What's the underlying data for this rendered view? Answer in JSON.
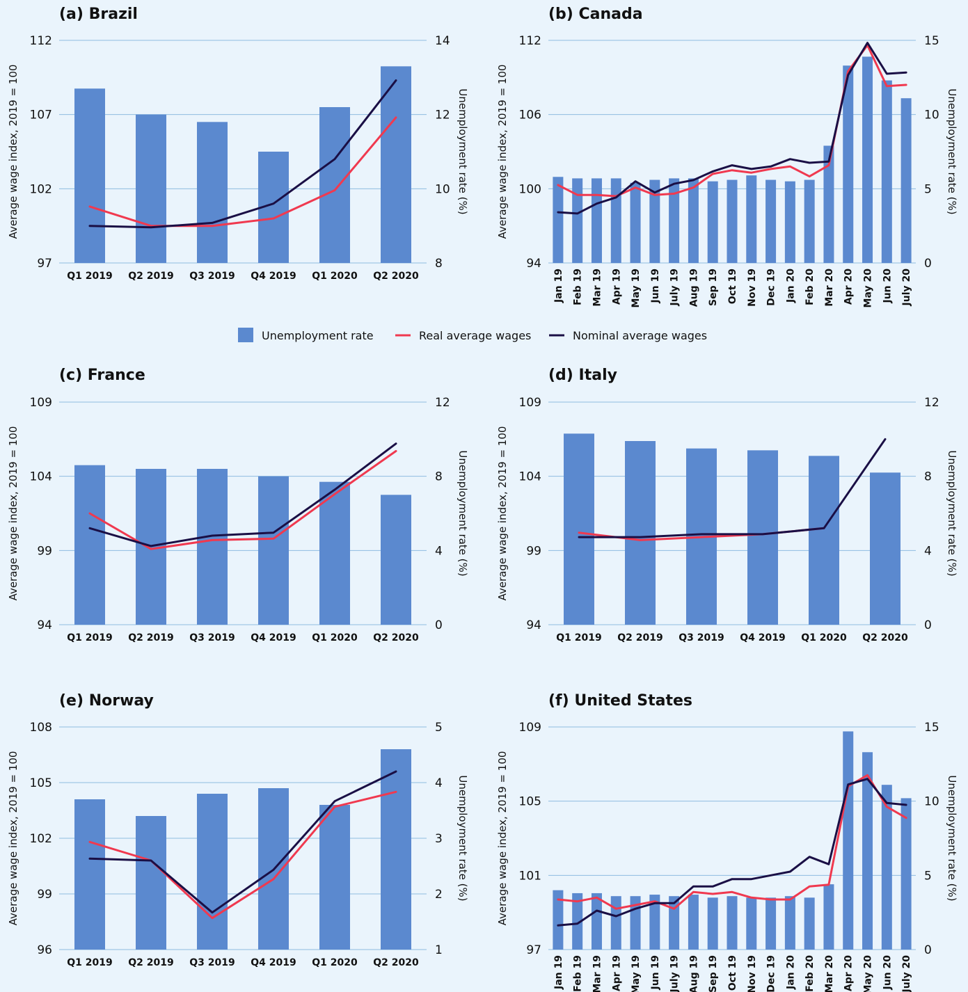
{
  "legend": {
    "unemployment": "Unemployment rate",
    "real": "Real average wages",
    "nominal": "Nominal average wages"
  },
  "colors": {
    "background": "#eaf4fc",
    "bar": "#5b89cf",
    "real": "#f0394f",
    "nominal": "#1a0f45",
    "grid": "#8fbbe0",
    "text": "#111111"
  },
  "chart_data": [
    {
      "type": "bar+line",
      "title": "(a) Brazil",
      "ylabel_left": "Average wage index, 2019 = 100",
      "ylabel_right": "Unemployment rate (%)",
      "categories": [
        "Q1 2019",
        "Q2 2019",
        "Q3 2019",
        "Q4 2019",
        "Q1 2020",
        "Q2 2020"
      ],
      "left_axis": {
        "min": 97,
        "max": 112,
        "ticks": [
          97,
          102,
          107,
          112
        ]
      },
      "right_axis": {
        "min": 8,
        "max": 14,
        "ticks": [
          8,
          10,
          12,
          14
        ]
      },
      "unemployment": [
        12.7,
        12.0,
        11.8,
        11.0,
        12.2,
        13.3
      ],
      "real": [
        100.8,
        99.5,
        99.5,
        100.0,
        101.9,
        106.8
      ],
      "nominal": [
        99.5,
        99.4,
        99.7,
        101.0,
        104.0,
        109.3
      ]
    },
    {
      "type": "bar+line",
      "title": "(b) Canada",
      "ylabel_left": "Average wage index, 2019 = 100",
      "ylabel_right": "Unemployment rate (%)",
      "categories": [
        "Jan 19",
        "Feb 19",
        "Mar 19",
        "Apr 19",
        "May 19",
        "Jun 19",
        "July 19",
        "Aug 19",
        "Sep 19",
        "Oct 19",
        "Nov 19",
        "Dec 19",
        "Jan 20",
        "Feb 20",
        "Mar 20",
        "Apr 20",
        "May 20",
        "Jun 20",
        "July 20"
      ],
      "left_axis": {
        "min": 94,
        "max": 112,
        "ticks": [
          94,
          100,
          106,
          112
        ]
      },
      "right_axis": {
        "min": 0,
        "max": 15,
        "ticks": [
          0,
          5,
          10,
          15
        ]
      },
      "unemployment": [
        5.8,
        5.7,
        5.7,
        5.7,
        5.4,
        5.6,
        5.7,
        5.7,
        5.5,
        5.6,
        5.9,
        5.6,
        5.5,
        5.6,
        7.9,
        13.3,
        13.9,
        12.3,
        11.1
      ],
      "real": [
        100.3,
        99.5,
        99.5,
        99.4,
        100.1,
        99.5,
        99.6,
        100.1,
        101.2,
        101.5,
        101.3,
        101.6,
        101.8,
        101.0,
        101.9,
        109.5,
        111.6,
        108.3,
        108.4
      ],
      "nominal": [
        98.1,
        98.0,
        98.8,
        99.3,
        100.6,
        99.7,
        100.4,
        100.7,
        101.4,
        101.9,
        101.6,
        101.8,
        102.4,
        102.1,
        102.2,
        109.2,
        111.8,
        109.3,
        109.4
      ]
    },
    {
      "type": "bar+line",
      "title": "(c) France",
      "ylabel_left": "Average wage index, 2019 = 100",
      "ylabel_right": "Unemployment rate (%)",
      "categories": [
        "Q1 2019",
        "Q2 2019",
        "Q3 2019",
        "Q4 2019",
        "Q1 2020",
        "Q2 2020"
      ],
      "left_axis": {
        "min": 94,
        "max": 109,
        "ticks": [
          94,
          99,
          104,
          109
        ]
      },
      "right_axis": {
        "min": 0,
        "max": 12,
        "ticks": [
          0,
          4,
          8,
          12
        ]
      },
      "unemployment": [
        8.6,
        8.4,
        8.4,
        8.0,
        7.7,
        7.0
      ],
      "real": [
        101.5,
        99.1,
        99.7,
        99.8,
        102.8,
        105.7
      ],
      "nominal": [
        100.5,
        99.3,
        100.0,
        100.2,
        103.1,
        106.2
      ]
    },
    {
      "type": "bar+line",
      "title": "(d) Italy",
      "ylabel_left": "Average wage index, 2019 = 100",
      "ylabel_right": "Unemployment rate (%)",
      "categories": [
        "Q1 2019",
        "Q2 2019",
        "Q3 2019",
        "Q4 2019",
        "Q1 2020",
        "Q2 2020"
      ],
      "left_axis": {
        "min": 94,
        "max": 109,
        "ticks": [
          94,
          99,
          104,
          109
        ]
      },
      "right_axis": {
        "min": 0,
        "max": 12,
        "ticks": [
          0,
          4,
          8,
          12
        ]
      },
      "unemployment": [
        10.3,
        9.9,
        9.5,
        9.4,
        9.1,
        8.2
      ],
      "real": [
        100.2,
        99.7,
        99.9,
        100.1,
        100.5,
        null
      ],
      "nominal": [
        99.9,
        99.9,
        100.1,
        100.1,
        100.5,
        106.5
      ]
    },
    {
      "type": "bar+line",
      "title": "(e) Norway",
      "ylabel_left": "Average wage index, 2019 = 100",
      "ylabel_right": "Unemployment rate (%)",
      "categories": [
        "Q1 2019",
        "Q2 2019",
        "Q3 2019",
        "Q4 2019",
        "Q1 2020",
        "Q2 2020"
      ],
      "left_axis": {
        "min": 96,
        "max": 108,
        "ticks": [
          96,
          99,
          102,
          105,
          108
        ]
      },
      "right_axis": {
        "min": 1,
        "max": 5,
        "ticks": [
          1,
          2,
          3,
          4,
          5
        ]
      },
      "unemployment": [
        3.7,
        3.4,
        3.8,
        3.9,
        3.6,
        4.6
      ],
      "real": [
        101.8,
        100.8,
        97.7,
        99.8,
        103.7,
        104.5
      ],
      "nominal": [
        100.9,
        100.8,
        98.0,
        100.3,
        104.0,
        105.6
      ]
    },
    {
      "type": "bar+line",
      "title": "(f) United States",
      "ylabel_left": "Average wage index, 2019 = 100",
      "ylabel_right": "Unemployment rate (%)",
      "categories": [
        "Jan 19",
        "Feb 19",
        "Mar 19",
        "Apr 19",
        "May 19",
        "Jun 19",
        "July 19",
        "Aug 19",
        "Sep 19",
        "Oct 19",
        "Nov 19",
        "Dec 19",
        "Jan 20",
        "Feb 20",
        "Mar 20",
        "Apr 20",
        "May 20",
        "Jun 20",
        "July 20"
      ],
      "left_axis": {
        "min": 97,
        "max": 109,
        "ticks": [
          97,
          101,
          105,
          109
        ]
      },
      "right_axis": {
        "min": 0,
        "max": 15,
        "ticks": [
          0,
          5,
          10,
          15
        ]
      },
      "unemployment": [
        4.0,
        3.8,
        3.8,
        3.6,
        3.6,
        3.7,
        3.6,
        3.7,
        3.5,
        3.6,
        3.5,
        3.5,
        3.6,
        3.5,
        4.4,
        14.7,
        13.3,
        11.1,
        10.2
      ],
      "real": [
        99.7,
        99.6,
        99.8,
        99.2,
        99.4,
        99.6,
        99.2,
        100.1,
        100.0,
        100.1,
        99.8,
        99.7,
        99.7,
        100.4,
        100.5,
        105.8,
        106.4,
        104.7,
        104.1
      ],
      "nominal": [
        98.3,
        98.4,
        99.1,
        98.8,
        99.2,
        99.5,
        99.5,
        100.4,
        100.4,
        100.8,
        100.8,
        101.0,
        101.2,
        102.0,
        101.6,
        105.9,
        106.2,
        104.9,
        104.8
      ]
    }
  ]
}
